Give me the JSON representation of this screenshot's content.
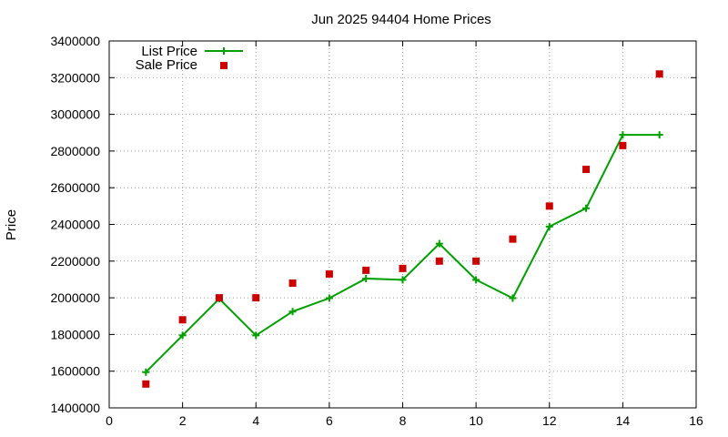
{
  "chart_data": {
    "type": "line",
    "title": "Jun 2025 94404 Home Prices",
    "xlabel": "",
    "ylabel": "Price",
    "xlim": [
      0,
      16
    ],
    "ylim": [
      1400000,
      3400000
    ],
    "x_ticks": [
      0,
      2,
      4,
      6,
      8,
      10,
      12,
      14,
      16
    ],
    "y_ticks": [
      1400000,
      1600000,
      1800000,
      2000000,
      2200000,
      2400000,
      2600000,
      2800000,
      3000000,
      3200000,
      3400000
    ],
    "grid": true,
    "legend_position": "top-left",
    "series": [
      {
        "name": "List Price",
        "style": "line-plus",
        "color": "#00a000",
        "x": [
          1,
          2,
          3,
          4,
          5,
          6,
          7,
          8,
          9,
          10,
          11,
          12,
          13,
          14,
          15
        ],
        "y": [
          1595000,
          1795000,
          1995000,
          1795000,
          1925000,
          1998000,
          2105000,
          2098000,
          2295000,
          2098000,
          1998000,
          2388000,
          2488000,
          2888000,
          2888000
        ]
      },
      {
        "name": "Sale Price",
        "style": "square",
        "color": "#cc0000",
        "x": [
          1,
          2,
          3,
          4,
          5,
          6,
          7,
          8,
          9,
          10,
          11,
          12,
          13,
          14,
          15
        ],
        "y": [
          1530000,
          1880000,
          2000000,
          2000000,
          2080000,
          2130000,
          2150000,
          2160000,
          2200000,
          2200000,
          2320000,
          2500000,
          2700000,
          2830000,
          3220000
        ]
      }
    ]
  }
}
